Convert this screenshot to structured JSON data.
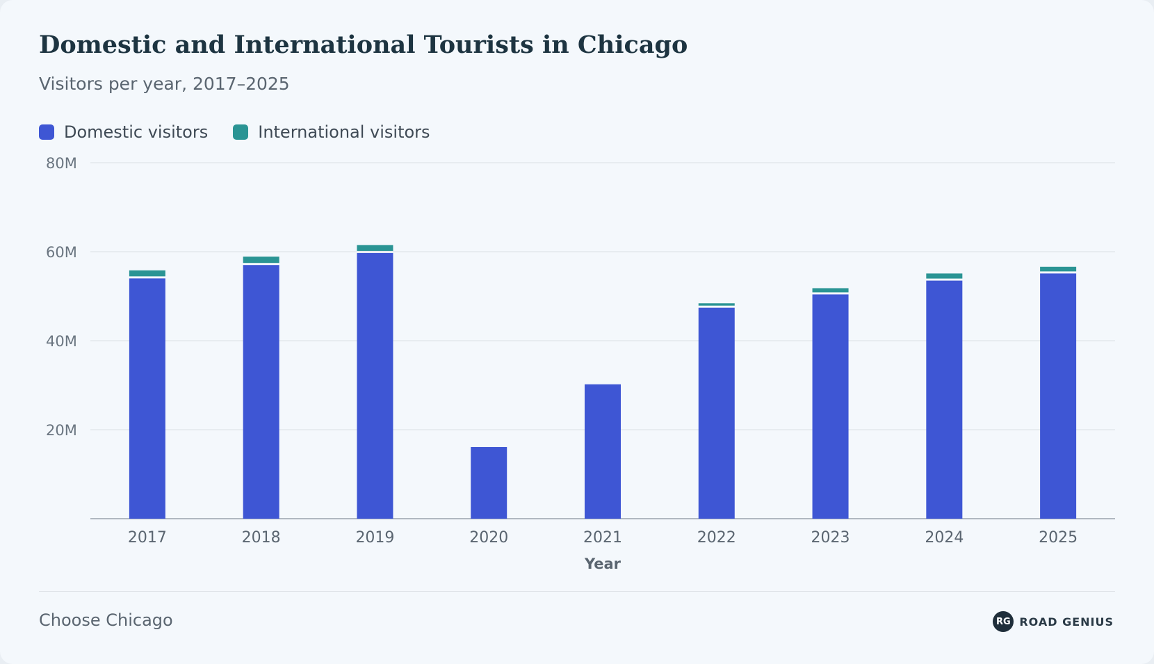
{
  "chart_data": {
    "type": "bar",
    "stacked": true,
    "title": "Domestic and International Tourists in Chicago",
    "subtitle": "Visitors per year, 2017–2025",
    "xlabel": "Year",
    "ylabel": "",
    "categories": [
      "2017",
      "2018",
      "2019",
      "2020",
      "2021",
      "2022",
      "2023",
      "2024",
      "2025"
    ],
    "series": [
      {
        "name": "Domestic visitors",
        "color": "#3e56d4",
        "values": [
          54,
          57,
          59.7,
          16.1,
          30.2,
          47.4,
          50.4,
          53.5,
          55.1
        ]
      },
      {
        "name": "International visitors",
        "color": "#2a9494",
        "values": [
          1.8,
          1.9,
          1.8,
          0,
          0,
          1.0,
          1.4,
          1.6,
          1.5
        ]
      }
    ],
    "ylim": [
      0,
      80
    ],
    "yticks": [
      20,
      40,
      60,
      80
    ],
    "ytick_labels": [
      "20M",
      "40M",
      "60M",
      "80M"
    ],
    "grid": true,
    "legend_position": "top-left"
  },
  "footer": {
    "source": "Choose Chicago",
    "brand_logo": "RG",
    "brand_name": "ROAD GENIUS"
  }
}
